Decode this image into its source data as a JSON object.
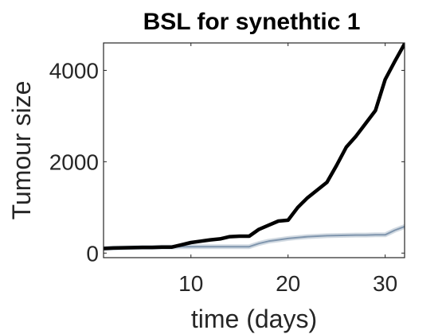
{
  "chart_data": {
    "type": "line",
    "title": "BSL for synethtic 1",
    "xlabel": "time (days)",
    "ylabel": "Tumour size",
    "xlim": [
      1,
      32
    ],
    "ylim": [
      -100,
      4600
    ],
    "xticks": [
      10,
      20,
      30
    ],
    "yticks": [
      0,
      2000,
      4000
    ],
    "grid": false,
    "legend": "none",
    "series": [
      {
        "color": "#000000",
        "x": [
          1,
          2,
          3,
          4,
          5,
          6,
          7,
          8,
          9,
          10,
          11,
          12,
          13,
          14,
          15,
          16,
          17,
          18,
          19,
          20,
          21,
          22,
          23,
          24,
          25,
          26,
          27,
          28,
          29,
          30,
          31,
          32
        ],
        "y": [
          100,
          110,
          115,
          120,
          125,
          125,
          130,
          130,
          180,
          230,
          260,
          290,
          310,
          360,
          370,
          370,
          520,
          610,
          700,
          720,
          1000,
          1210,
          1380,
          1550,
          1920,
          2320,
          2560,
          2840,
          3120,
          3800,
          4200,
          4580
        ]
      },
      {
        "color": "#7f95ad",
        "x": [
          1,
          2,
          3,
          4,
          5,
          6,
          7,
          8,
          9,
          10,
          11,
          12,
          13,
          14,
          15,
          16,
          17,
          18,
          19,
          20,
          21,
          22,
          23,
          24,
          25,
          26,
          27,
          28,
          29,
          30,
          31,
          32
        ],
        "y": [
          100,
          110,
          115,
          120,
          125,
          125,
          130,
          130,
          140,
          140,
          140,
          140,
          140,
          140,
          140,
          140,
          210,
          260,
          290,
          320,
          340,
          360,
          370,
          380,
          385,
          390,
          395,
          395,
          400,
          400,
          500,
          580
        ]
      }
    ]
  }
}
